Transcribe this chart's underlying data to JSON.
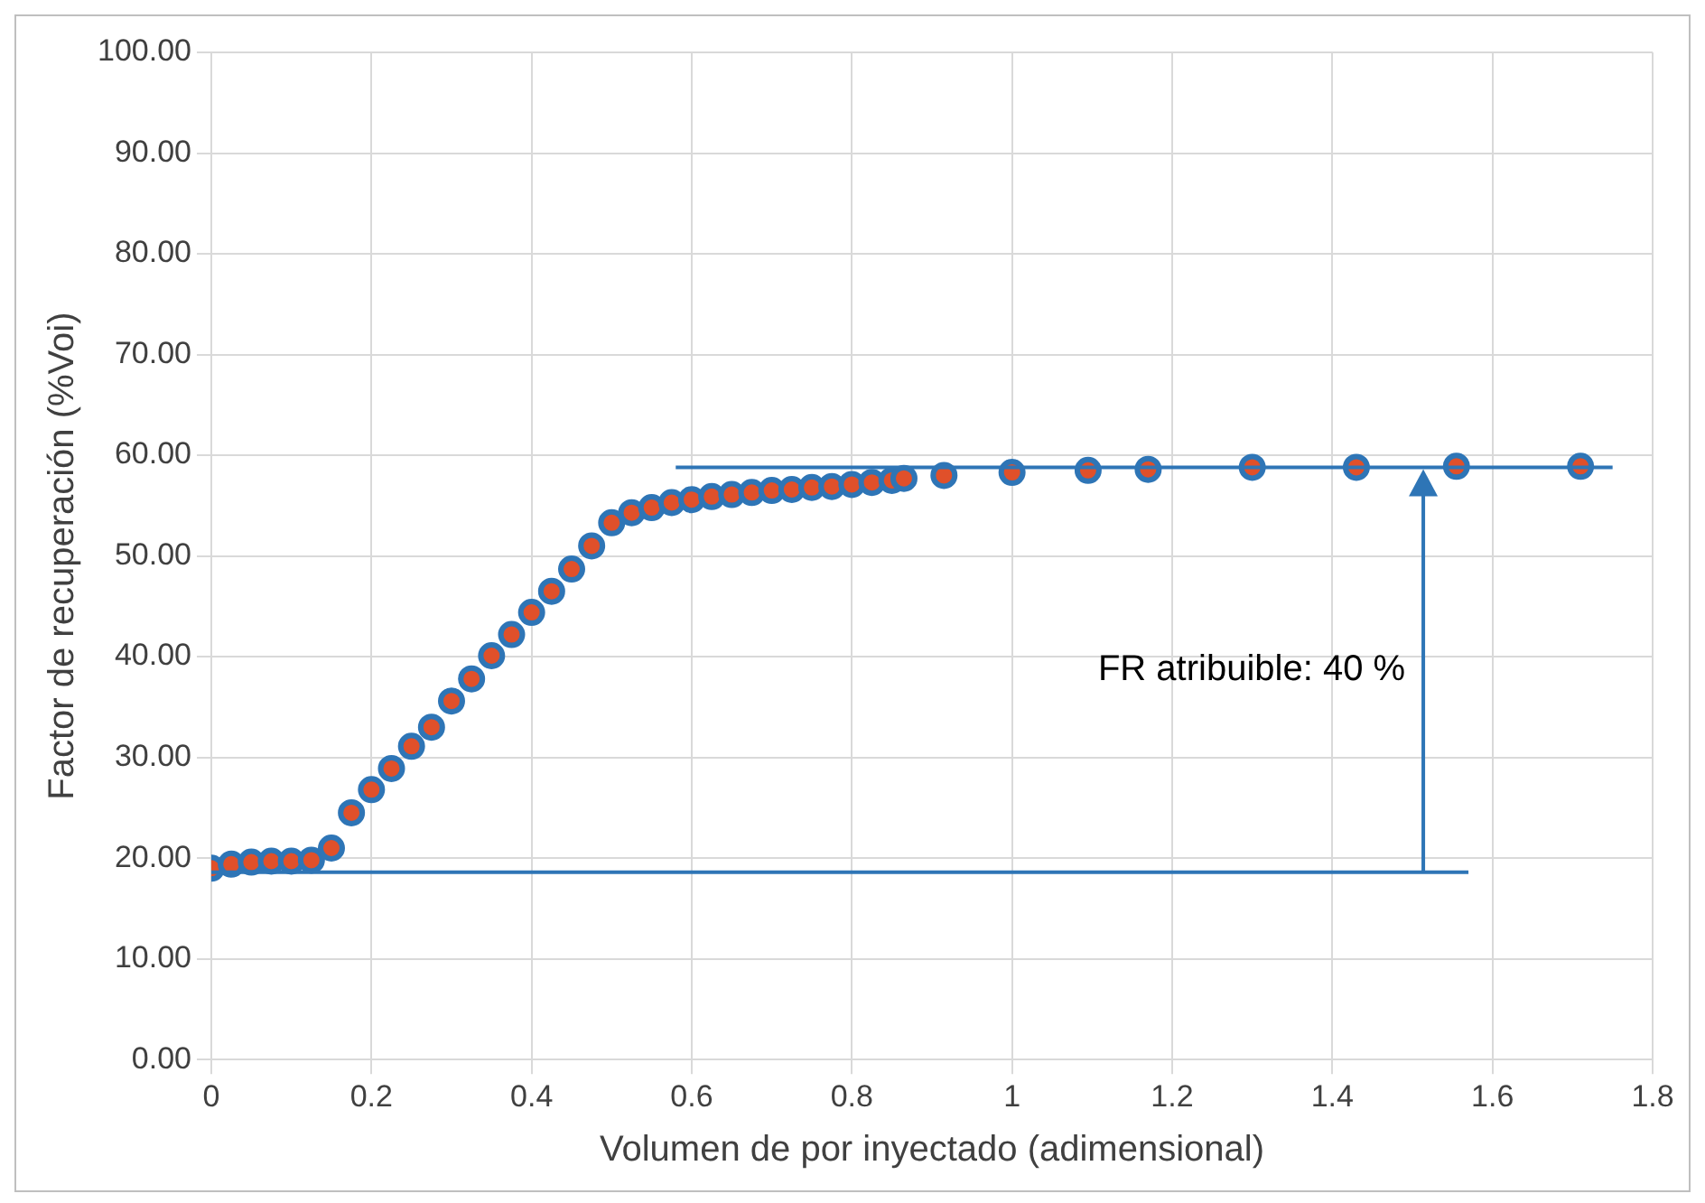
{
  "chart_data": {
    "type": "scatter",
    "xlabel": "Volumen de por inyectado (adimensional)",
    "ylabel": "Factor de recuperación (%Voi)",
    "series": [
      {
        "type": "scatter",
        "color": "#2e75b6",
        "marker": "circle",
        "x": [
          0,
          0.025,
          0.05,
          0.075,
          0.1,
          0.125,
          0.15,
          0.175,
          0.2,
          0.225,
          0.25,
          0.275,
          0.3,
          0.325,
          0.35,
          0.375,
          0.4,
          0.425,
          0.45,
          0.475,
          0.5,
          0.525,
          0.55,
          0.575,
          0.6,
          0.625,
          0.65,
          0.675,
          0.7,
          0.725,
          0.75,
          0.775,
          0.8,
          0.825,
          0.85,
          0.865,
          0.915,
          1.0,
          1.095,
          1.17,
          1.3,
          1.43,
          1.555,
          1.71
        ],
        "values": [
          19.0,
          19.4,
          19.6,
          19.7,
          19.7,
          19.8,
          21.0,
          24.5,
          26.8,
          28.9,
          31.1,
          33.0,
          35.6,
          37.8,
          40.1,
          42.2,
          44.4,
          46.5,
          48.7,
          51.0,
          53.3,
          54.3,
          54.8,
          55.3,
          55.6,
          55.9,
          56.1,
          56.3,
          56.5,
          56.6,
          56.8,
          56.9,
          57.1,
          57.3,
          57.5,
          57.7,
          58.0,
          58.3,
          58.5,
          58.6,
          58.8,
          58.8,
          58.9,
          58.9
        ]
      },
      {
        "type": "line",
        "color": "#2e75b6",
        "marker": "none",
        "x": [
          0,
          1.57
        ],
        "values": [
          18.6,
          18.6
        ]
      },
      {
        "type": "line",
        "color": "#2e75b6",
        "marker": "none",
        "x": [
          0.58,
          1.75
        ],
        "values": [
          58.8,
          58.8
        ]
      }
    ],
    "annotations": [
      "FR atribuible: 40 %"
    ],
    "xlim": [
      0,
      1.8
    ],
    "xticks": [
      0,
      0.2,
      0.4,
      0.6,
      0.8,
      1,
      1.2,
      1.4,
      1.6,
      1.8
    ],
    "ylim": [
      0,
      100
    ],
    "yticks": [
      {
        "value": 0,
        "label": "0.00"
      },
      {
        "value": 10,
        "label": "10.00"
      },
      {
        "value": 20,
        "label": "20.00"
      },
      {
        "value": 30,
        "label": "30.00"
      },
      {
        "value": 40,
        "label": "40.00"
      },
      {
        "value": 50,
        "label": "50.00"
      },
      {
        "value": 60,
        "label": "60.00"
      },
      {
        "value": 70,
        "label": "70.00"
      },
      {
        "value": 80,
        "label": "80.00"
      },
      {
        "value": 90,
        "label": "90.00"
      },
      {
        "value": 100,
        "label": "100.00"
      }
    ],
    "grid": true,
    "legend": false
  }
}
